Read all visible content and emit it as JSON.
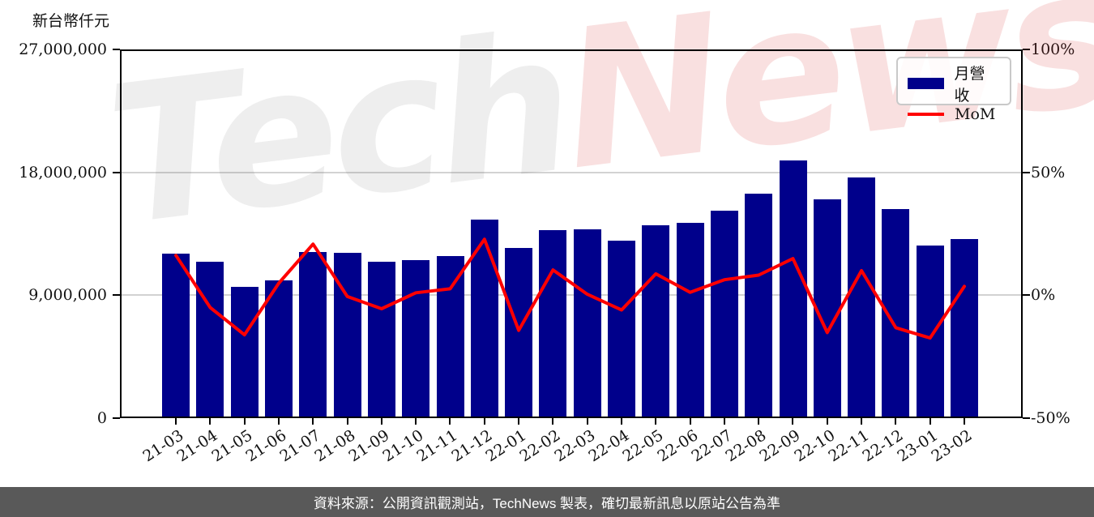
{
  "page": {
    "axis_title": "新台幣仟元",
    "footer_text": "資料來源：公開資訊觀測站，TechNews 製表，確切最新訊息以原站公告為準"
  },
  "watermark": {
    "part1": "Tech",
    "part2": "News"
  },
  "legend": {
    "bar_label": "月營收",
    "line_label": "MoM"
  },
  "colors": {
    "bar": "#00008B",
    "line": "#FF0000",
    "grid": "#d2d2d2",
    "footer_bg": "#595959"
  },
  "left_axis": {
    "tick_labels": [
      "27,000,000",
      "18,000,000",
      "9,000,000",
      "0"
    ]
  },
  "right_axis": {
    "tick_labels": [
      "100%",
      "50%",
      "0%",
      "-50%"
    ]
  },
  "chart_data": {
    "type": "bar",
    "title": "",
    "xlabel": "",
    "ylabel_left": "新台幣仟元",
    "left_ylim": [
      0,
      27000000
    ],
    "right_ylim": [
      -50,
      100
    ],
    "grid": "horizontal",
    "legend_position": "upper-right",
    "categories": [
      "21-03",
      "21-04",
      "21-05",
      "21-06",
      "21-07",
      "21-08",
      "21-09",
      "21-10",
      "21-11",
      "21-12",
      "22-01",
      "22-02",
      "22-03",
      "22-04",
      "22-05",
      "22-06",
      "22-07",
      "22-08",
      "22-09",
      "22-10",
      "22-11",
      "22-12",
      "23-01",
      "23-02"
    ],
    "series": [
      {
        "name": "月營收",
        "type": "bar",
        "axis": "left",
        "unit": "仟元",
        "values": [
          12040000,
          11440000,
          9600000,
          10070000,
          12160000,
          12100000,
          11440000,
          11560000,
          11860000,
          14560000,
          12480000,
          13770000,
          13830000,
          13000000,
          14130000,
          14300000,
          15200000,
          16450000,
          18900000,
          16030000,
          17640000,
          15320000,
          12660000,
          13110000
        ]
      },
      {
        "name": "MoM",
        "type": "line",
        "axis": "right",
        "unit": "%",
        "values": [
          16.2,
          -5.0,
          -16.1,
          4.9,
          20.8,
          -0.5,
          -5.5,
          1.0,
          2.6,
          22.8,
          -14.3,
          10.3,
          0.4,
          -6.0,
          8.7,
          1.2,
          6.3,
          8.2,
          14.9,
          -15.2,
          10.0,
          -13.2,
          -17.4,
          3.6
        ]
      }
    ]
  }
}
